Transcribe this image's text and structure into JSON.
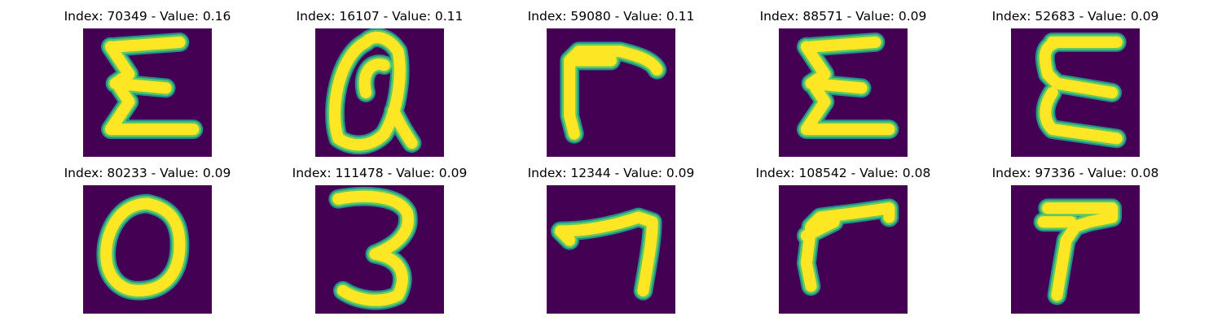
{
  "colors": {
    "background": "#440154",
    "stroke_core": "#fde725",
    "stroke_mid": "#5ec962",
    "stroke_edge": "#21918c"
  },
  "panels": [
    {
      "title": "Index: 70349 - Value: 0.16",
      "glyph": "E-zigzag"
    },
    {
      "title": "Index: 16107 - Value: 0.11",
      "glyph": "a-loop"
    },
    {
      "title": "Index: 59080 - Value: 0.11",
      "glyph": "gamma-thick"
    },
    {
      "title": "Index: 88571 - Value: 0.09",
      "glyph": "E-zigzag"
    },
    {
      "title": "Index: 52683 - Value: 0.09",
      "glyph": "E-curly"
    },
    {
      "title": "Index: 80233 - Value: 0.09",
      "glyph": "O-ring"
    },
    {
      "title": "Index: 111478 - Value: 0.09",
      "glyph": "three"
    },
    {
      "title": "Index: 12344 - Value: 0.09",
      "glyph": "seven"
    },
    {
      "title": "Index: 108542 - Value: 0.08",
      "glyph": "gamma"
    },
    {
      "title": "Index: 97336 - Value: 0.08",
      "glyph": "T-blob"
    }
  ]
}
